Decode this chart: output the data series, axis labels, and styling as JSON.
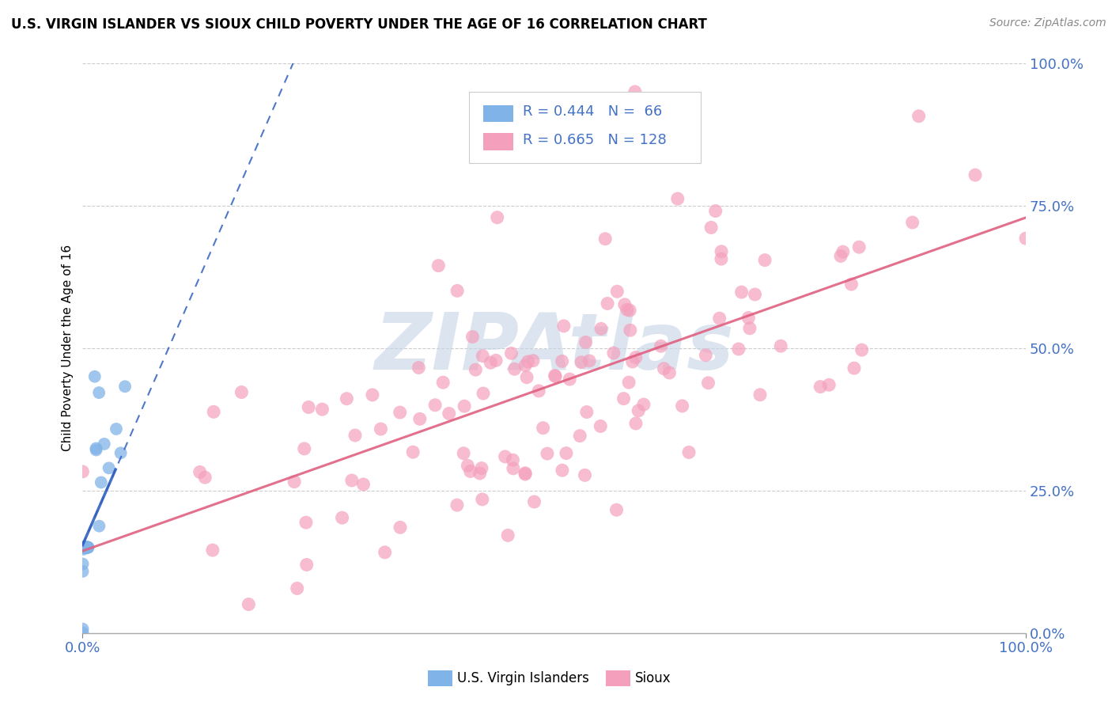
{
  "title": "U.S. VIRGIN ISLANDER VS SIOUX CHILD POVERTY UNDER THE AGE OF 16 CORRELATION CHART",
  "source": "Source: ZipAtlas.com",
  "ylabel": "Child Poverty Under the Age of 16",
  "ytick_labels": [
    "0.0%",
    "25.0%",
    "50.0%",
    "75.0%",
    "100.0%"
  ],
  "ytick_values": [
    0.0,
    0.25,
    0.5,
    0.75,
    1.0
  ],
  "legend_label1": "U.S. Virgin Islanders",
  "legend_label2": "Sioux",
  "color_blue": "#80B3E8",
  "color_pink": "#F4A0BC",
  "color_blue_line": "#3060C0",
  "color_pink_line": "#E06080",
  "color_text_blue": "#4472C4",
  "r1": 0.444,
  "n1": 66,
  "r2": 0.665,
  "n2": 128,
  "background_color": "#FFFFFF",
  "watermark_color": "#C5D5E5"
}
